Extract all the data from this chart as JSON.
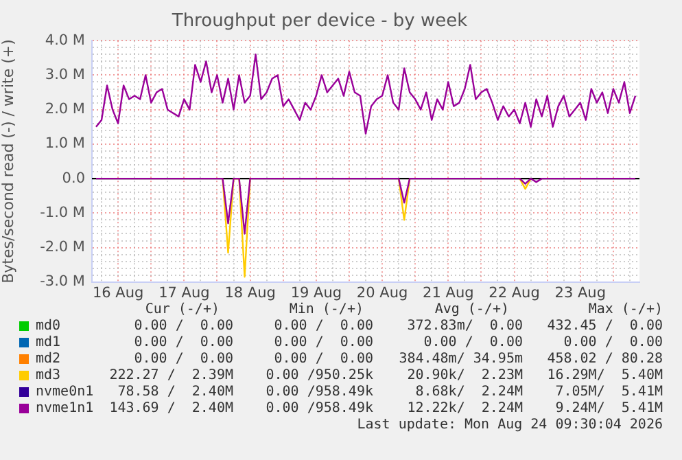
{
  "chart_data": {
    "type": "line",
    "title": "Throughput per device - by week",
    "ylabel": "Bytes/second read (-) / write (+)",
    "x": [
      "2026-08-16T04:00",
      "2026-08-16T06:00",
      "2026-08-16T08:00",
      "2026-08-16T10:00",
      "2026-08-16T12:00",
      "2026-08-16T14:00",
      "2026-08-16T16:00",
      "2026-08-16T18:00",
      "2026-08-16T20:00",
      "2026-08-16T22:00",
      "2026-08-17T00:00",
      "2026-08-17T02:00",
      "2026-08-17T04:00",
      "2026-08-17T06:00",
      "2026-08-17T08:00",
      "2026-08-17T10:00",
      "2026-08-17T12:00",
      "2026-08-17T14:00",
      "2026-08-17T16:00",
      "2026-08-17T18:00",
      "2026-08-17T20:00",
      "2026-08-17T22:00",
      "2026-08-18T00:00",
      "2026-08-18T02:00",
      "2026-08-18T04:00",
      "2026-08-18T06:00",
      "2026-08-18T08:00",
      "2026-08-18T10:00",
      "2026-08-18T12:00",
      "2026-08-18T14:00",
      "2026-08-18T16:00",
      "2026-08-18T18:00",
      "2026-08-18T20:00",
      "2026-08-18T22:00",
      "2026-08-19T00:00",
      "2026-08-19T02:00",
      "2026-08-19T04:00",
      "2026-08-19T06:00",
      "2026-08-19T08:00",
      "2026-08-19T10:00",
      "2026-08-19T12:00",
      "2026-08-19T14:00",
      "2026-08-19T16:00",
      "2026-08-19T18:00",
      "2026-08-19T20:00",
      "2026-08-19T22:00",
      "2026-08-20T00:00",
      "2026-08-20T02:00",
      "2026-08-20T04:00",
      "2026-08-20T06:00",
      "2026-08-20T08:00",
      "2026-08-20T10:00",
      "2026-08-20T12:00",
      "2026-08-20T14:00",
      "2026-08-20T16:00",
      "2026-08-20T18:00",
      "2026-08-20T20:00",
      "2026-08-20T22:00",
      "2026-08-21T00:00",
      "2026-08-21T02:00",
      "2026-08-21T04:00",
      "2026-08-21T06:00",
      "2026-08-21T08:00",
      "2026-08-21T10:00",
      "2026-08-21T12:00",
      "2026-08-21T14:00",
      "2026-08-21T16:00",
      "2026-08-21T18:00",
      "2026-08-21T20:00",
      "2026-08-21T22:00",
      "2026-08-22T00:00",
      "2026-08-22T02:00",
      "2026-08-22T04:00",
      "2026-08-22T06:00",
      "2026-08-22T08:00",
      "2026-08-22T10:00",
      "2026-08-22T12:00",
      "2026-08-22T14:00",
      "2026-08-22T16:00",
      "2026-08-22T18:00",
      "2026-08-22T20:00",
      "2026-08-22T22:00",
      "2026-08-23T00:00",
      "2026-08-23T02:00",
      "2026-08-23T04:00",
      "2026-08-23T06:00",
      "2026-08-23T08:00",
      "2026-08-23T10:00",
      "2026-08-23T12:00",
      "2026-08-23T14:00",
      "2026-08-23T16:00",
      "2026-08-23T18:00",
      "2026-08-23T20:00",
      "2026-08-23T22:00",
      "2026-08-24T00:00",
      "2026-08-24T02:00",
      "2026-08-24T04:00",
      "2026-08-24T06:00",
      "2026-08-24T08:00"
    ],
    "series": [
      {
        "name": "md0",
        "color": "#00cc00",
        "values": [
          null,
          null,
          null,
          null,
          null,
          null,
          null,
          null,
          null,
          null,
          null,
          null,
          null,
          null,
          null,
          null,
          null,
          null,
          null,
          null,
          null,
          null,
          null,
          null,
          null,
          null,
          null,
          null,
          null,
          null,
          null,
          null,
          null,
          null,
          null,
          null,
          null,
          null,
          null,
          null,
          null,
          null,
          null,
          null,
          null,
          null,
          null,
          null,
          null,
          null,
          null,
          null,
          null,
          null,
          null,
          null,
          null,
          null,
          null,
          null,
          null,
          null,
          null,
          null,
          null,
          null,
          null,
          null,
          null,
          null,
          null,
          null,
          null,
          null,
          null,
          null,
          null,
          null,
          null,
          null,
          null,
          null,
          null,
          null,
          null,
          null,
          null,
          null,
          null,
          null,
          null,
          null,
          null,
          null,
          null,
          null,
          null,
          null,
          null
        ]
      },
      {
        "name": "md1",
        "color": "#0066b3",
        "values": [
          null,
          null,
          null,
          null,
          null,
          null,
          null,
          null,
          null,
          null,
          null,
          null,
          null,
          null,
          null,
          null,
          null,
          null,
          null,
          null,
          null,
          null,
          null,
          null,
          null,
          null,
          null,
          null,
          null,
          null,
          null,
          null,
          null,
          null,
          null,
          null,
          null,
          null,
          null,
          null,
          null,
          null,
          null,
          null,
          null,
          null,
          null,
          null,
          null,
          null,
          null,
          null,
          null,
          null,
          null,
          null,
          null,
          null,
          null,
          null,
          null,
          null,
          null,
          null,
          null,
          null,
          null,
          null,
          null,
          null,
          null,
          null,
          null,
          null,
          null,
          null,
          null,
          null,
          null,
          null,
          null,
          null,
          null,
          null,
          null,
          null,
          null,
          null,
          null,
          null,
          null,
          null,
          null,
          null,
          null,
          null,
          null,
          null,
          null
        ]
      },
      {
        "name": "md2",
        "color": "#ff8000",
        "values": [
          null,
          null,
          null,
          null,
          null,
          null,
          null,
          null,
          null,
          null,
          null,
          null,
          null,
          null,
          null,
          null,
          null,
          null,
          null,
          null,
          null,
          null,
          null,
          null,
          null,
          null,
          null,
          null,
          null,
          null,
          null,
          null,
          null,
          null,
          null,
          null,
          null,
          null,
          null,
          null,
          null,
          null,
          null,
          null,
          null,
          null,
          null,
          null,
          null,
          null,
          null,
          null,
          null,
          null,
          null,
          null,
          null,
          null,
          null,
          null,
          null,
          null,
          null,
          null,
          null,
          null,
          null,
          null,
          null,
          null,
          null,
          null,
          null,
          null,
          null,
          null,
          null,
          null,
          null,
          null,
          null,
          null,
          null,
          null,
          null,
          null,
          null,
          null,
          null,
          null,
          null,
          null,
          null,
          null,
          null,
          null,
          null,
          null,
          null
        ]
      },
      {
        "name": "md3",
        "color": "#ffcc00",
        "values": [
          null,
          null,
          null,
          null,
          null,
          null,
          null,
          null,
          null,
          null,
          null,
          null,
          null,
          null,
          null,
          null,
          null,
          null,
          null,
          null,
          null,
          null,
          null,
          0,
          -2150000,
          0,
          0,
          -2850000,
          0,
          null,
          null,
          null,
          null,
          null,
          null,
          null,
          null,
          null,
          null,
          null,
          null,
          null,
          null,
          null,
          null,
          null,
          null,
          null,
          null,
          null,
          null,
          null,
          null,
          null,
          null,
          0,
          -1200000,
          0,
          null,
          null,
          null,
          null,
          null,
          null,
          null,
          null,
          null,
          null,
          null,
          null,
          null,
          null,
          null,
          null,
          null,
          null,
          null,
          0,
          -300000,
          0,
          null,
          null,
          null,
          null,
          null,
          null,
          null,
          null,
          null,
          null,
          null,
          null,
          null,
          null,
          null,
          null,
          null,
          null,
          null
        ]
      },
      {
        "name": "nvme0n1",
        "color": "#330099",
        "values": [
          null,
          null,
          null,
          null,
          null,
          null,
          null,
          null,
          null,
          null,
          null,
          null,
          null,
          null,
          null,
          null,
          null,
          null,
          null,
          null,
          null,
          null,
          null,
          null,
          null,
          null,
          null,
          null,
          null,
          null,
          null,
          null,
          null,
          null,
          null,
          null,
          null,
          null,
          null,
          null,
          null,
          null,
          null,
          null,
          null,
          null,
          null,
          null,
          null,
          null,
          null,
          null,
          null,
          null,
          null,
          null,
          null,
          null,
          null,
          null,
          null,
          null,
          null,
          null,
          null,
          null,
          null,
          null,
          null,
          null,
          null,
          null,
          null,
          null,
          null,
          null,
          null,
          null,
          null,
          null,
          null,
          null,
          null,
          null,
          null,
          null,
          null,
          null,
          null,
          null,
          null,
          null,
          null,
          null,
          null,
          null,
          null,
          null,
          null
        ]
      },
      {
        "name": "nvme1n1",
        "color": "#990099",
        "values": [
          1500000,
          1700000,
          2700000,
          2000000,
          1600000,
          2700000,
          2300000,
          2400000,
          2300000,
          3000000,
          2200000,
          2500000,
          2600000,
          2000000,
          1900000,
          1800000,
          2300000,
          2000000,
          3300000,
          2800000,
          3400000,
          2500000,
          3000000,
          2200000,
          2900000,
          2000000,
          3000000,
          2200000,
          2400000,
          3600000,
          2300000,
          2500000,
          2900000,
          3000000,
          2100000,
          2300000,
          2000000,
          1700000,
          2200000,
          2000000,
          2400000,
          3000000,
          2500000,
          2700000,
          2900000,
          2400000,
          3100000,
          2500000,
          2400000,
          1300000,
          2100000,
          2300000,
          2400000,
          3000000,
          2200000,
          2000000,
          3200000,
          2500000,
          2300000,
          2000000,
          2500000,
          1700000,
          2300000,
          2000000,
          2800000,
          2100000,
          2200000,
          2600000,
          3300000,
          2300000,
          2500000,
          2600000,
          2200000,
          1700000,
          2100000,
          1800000,
          2000000,
          1600000,
          2200000,
          1500000,
          2300000,
          1800000,
          2400000,
          1500000,
          2100000,
          2400000,
          1800000,
          2000000,
          2200000,
          1700000,
          2600000,
          2200000,
          2500000,
          1900000,
          2600000,
          2200000,
          2800000,
          1900000,
          2400000
        ]
      },
      {
        "color": "#990099",
        "values": [
          0,
          0,
          0,
          0,
          0,
          0,
          0,
          0,
          0,
          0,
          0,
          0,
          0,
          0,
          0,
          0,
          0,
          0,
          0,
          0,
          0,
          0,
          0,
          0,
          -1300000,
          0,
          0,
          -1600000,
          0,
          0,
          0,
          0,
          0,
          0,
          0,
          0,
          0,
          0,
          0,
          0,
          0,
          0,
          0,
          0,
          0,
          0,
          0,
          0,
          0,
          0,
          0,
          0,
          0,
          0,
          0,
          0,
          -700000,
          0,
          0,
          0,
          0,
          0,
          0,
          0,
          0,
          0,
          0,
          0,
          0,
          0,
          0,
          0,
          0,
          0,
          0,
          0,
          0,
          0,
          -150000,
          0,
          -100000,
          0,
          0,
          0,
          0,
          0,
          0,
          0,
          0,
          0,
          0,
          0,
          0,
          0,
          0,
          0,
          0,
          0,
          0
        ]
      }
    ],
    "xlim": [
      "2026-08-16T02:30",
      "2026-08-24T09:30"
    ],
    "xticks": [
      {
        "value": "2026-08-16T06:00",
        "label": null
      },
      {
        "value": "2026-08-16T12:00",
        "label": "16 Aug"
      },
      {
        "value": "2026-08-16T18:00",
        "label": null
      },
      {
        "value": "2026-08-17T00:00",
        "label": null
      },
      {
        "value": "2026-08-17T06:00",
        "label": null
      },
      {
        "value": "2026-08-17T12:00",
        "label": "17 Aug"
      },
      {
        "value": "2026-08-17T18:00",
        "label": null
      },
      {
        "value": "2026-08-18T00:00",
        "label": null
      },
      {
        "value": "2026-08-18T06:00",
        "label": null
      },
      {
        "value": "2026-08-18T12:00",
        "label": "18 Aug"
      },
      {
        "value": "2026-08-18T18:00",
        "label": null
      },
      {
        "value": "2026-08-19T00:00",
        "label": null
      },
      {
        "value": "2026-08-19T06:00",
        "label": null
      },
      {
        "value": "2026-08-19T12:00",
        "label": "19 Aug"
      },
      {
        "value": "2026-08-19T18:00",
        "label": null
      },
      {
        "value": "2026-08-20T00:00",
        "label": null
      },
      {
        "value": "2026-08-20T06:00",
        "label": null
      },
      {
        "value": "2026-08-20T12:00",
        "label": "20 Aug"
      },
      {
        "value": "2026-08-20T18:00",
        "label": null
      },
      {
        "value": "2026-08-21T00:00",
        "label": null
      },
      {
        "value": "2026-08-21T06:00",
        "label": null
      },
      {
        "value": "2026-08-21T12:00",
        "label": "21 Aug"
      },
      {
        "value": "2026-08-21T18:00",
        "label": null
      },
      {
        "value": "2026-08-22T00:00",
        "label": null
      },
      {
        "value": "2026-08-22T06:00",
        "label": null
      },
      {
        "value": "2026-08-22T12:00",
        "label": "22 Aug"
      },
      {
        "value": "2026-08-22T18:00",
        "label": null
      },
      {
        "value": "2026-08-23T00:00",
        "label": null
      },
      {
        "value": "2026-08-23T06:00",
        "label": null
      },
      {
        "value": "2026-08-23T12:00",
        "label": "23 Aug"
      },
      {
        "value": "2026-08-23T18:00",
        "label": null
      },
      {
        "value": "2026-08-24T00:00",
        "label": null
      },
      {
        "value": "2026-08-24T06:00",
        "label": null
      }
    ],
    "ylim": [
      -3000000,
      4000000
    ],
    "yticks": [
      {
        "value": -3000000,
        "label": "-3.0 M"
      },
      {
        "value": -2800000,
        "label": null
      },
      {
        "value": -2600000,
        "label": null
      },
      {
        "value": -2400000,
        "label": null
      },
      {
        "value": -2200000,
        "label": null
      },
      {
        "value": -2000000,
        "label": "-2.0 M"
      },
      {
        "value": -1800000,
        "label": null
      },
      {
        "value": -1600000,
        "label": null
      },
      {
        "value": -1400000,
        "label": null
      },
      {
        "value": -1200000,
        "label": null
      },
      {
        "value": -1000000,
        "label": "-1.0 M"
      },
      {
        "value": -800000,
        "label": null
      },
      {
        "value": -600000,
        "label": null
      },
      {
        "value": -400000,
        "label": null
      },
      {
        "value": -200000,
        "label": null
      },
      {
        "value": 0,
        "label": "0.0"
      },
      {
        "value": 200000,
        "label": null
      },
      {
        "value": 400000,
        "label": null
      },
      {
        "value": 600000,
        "label": null
      },
      {
        "value": 800000,
        "label": null
      },
      {
        "value": 1000000,
        "label": "1.0 M"
      },
      {
        "value": 1200000,
        "label": null
      },
      {
        "value": 1400000,
        "label": null
      },
      {
        "value": 1600000,
        "label": null
      },
      {
        "value": 1800000,
        "label": null
      },
      {
        "value": 2000000,
        "label": "2.0 M"
      },
      {
        "value": 2200000,
        "label": null
      },
      {
        "value": 2400000,
        "label": null
      },
      {
        "value": 2600000,
        "label": null
      },
      {
        "value": 2800000,
        "label": null
      },
      {
        "value": 3000000,
        "label": "3.0 M"
      },
      {
        "value": 3200000,
        "label": null
      },
      {
        "value": 3400000,
        "label": null
      },
      {
        "value": 3600000,
        "label": null
      },
      {
        "value": 3800000,
        "label": null
      },
      {
        "value": 4000000,
        "label": "4.0 M"
      }
    ],
    "ref_lines": [
      {
        "axis": "y",
        "value": 0,
        "color": "#000000"
      }
    ],
    "grid": true,
    "legend": "bottom",
    "marker": "none",
    "line_style": "solid",
    "annotations": [
      "Cur (-/+)",
      "Min (-/+)",
      "Avg (-/+)",
      "Max (-/+)",
      "0.00 /  0.00",
      "0.00 /  0.00",
      "372.83m/  0.00",
      "432.45 /  0.00",
      "0.00 /  0.00",
      "0.00 /  0.00",
      "0.00 /  0.00",
      "0.00 /  0.00",
      "0.00 /  0.00",
      "0.00 /  0.00",
      "384.48m/ 34.95m",
      "458.02 / 80.28",
      "222.27 /  2.39M",
      "0.00 /950.25k",
      "20.90k/  2.23M",
      "16.29M/  5.40M",
      "78.58 /  2.40M",
      "0.00 /958.49k",
      "8.68k/  2.24M",
      "7.05M/  5.41M",
      "143.69 /  2.40M",
      "0.00 /958.49k",
      "12.22k/  2.24M",
      "9.24M/  5.41M",
      "Last update: Mon Aug 24 09:30:04 2026"
    ]
  }
}
